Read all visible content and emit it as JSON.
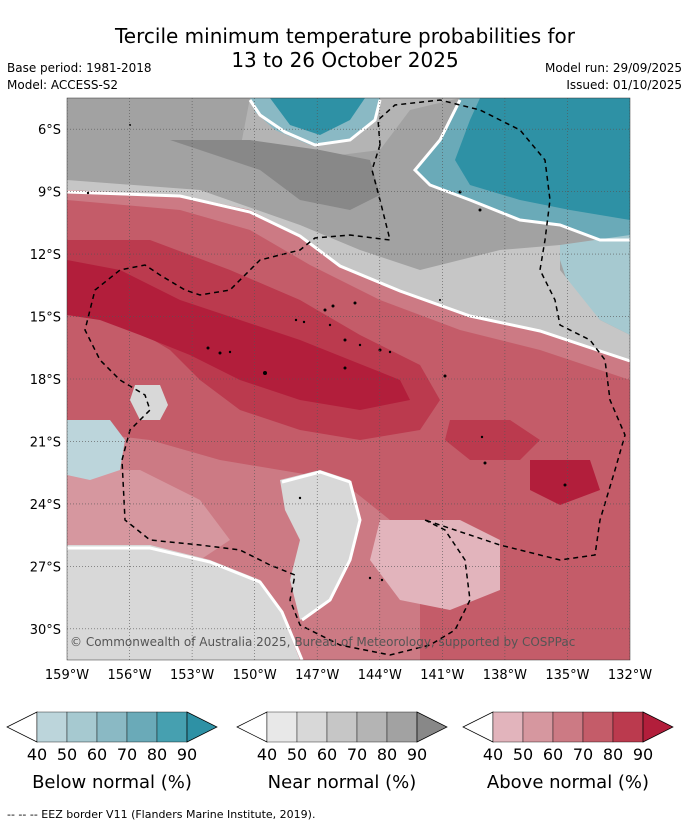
{
  "title_line1": "Tercile minimum temperature probabilities for",
  "title_line2": "13 to 26 October 2025",
  "base_period": "Base period: 1981-2018",
  "model": "Model: ACCESS-S2",
  "model_run": "Model run: 29/09/2025",
  "issued": "Issued: 01/10/2025",
  "copyright": "© Commonwealth of Australia 2025, Bureau of Meteorology, supported by COSPPac",
  "footer": "--  --  -- EEZ border V11 (Flanders Marine Institute, 2019).",
  "lat_labels": [
    "6°S",
    "9°S",
    "12°S",
    "15°S",
    "18°S",
    "21°S",
    "24°S",
    "27°S",
    "30°S"
  ],
  "lon_labels": [
    "159°W",
    "156°W",
    "153°W",
    "150°W",
    "147°W",
    "144°W",
    "141°W",
    "138°W",
    "135°W",
    "132°W"
  ],
  "colorbars": [
    {
      "title": "Below normal (%)",
      "ticks": [
        "40",
        "50",
        "60",
        "70",
        "80",
        "90"
      ],
      "colors": [
        "#ffffff",
        "#bcd5db",
        "#a6c9d0",
        "#8ab9c4",
        "#6aaab8",
        "#46a0b0",
        "#2e91a5"
      ]
    },
    {
      "title": "Near normal (%)",
      "ticks": [
        "40",
        "50",
        "60",
        "70",
        "80",
        "90"
      ],
      "colors": [
        "#ffffff",
        "#e8e8e8",
        "#d8d8d8",
        "#c6c6c6",
        "#b4b4b4",
        "#a2a2a2",
        "#888888"
      ]
    },
    {
      "title": "Above normal (%)",
      "ticks": [
        "40",
        "50",
        "60",
        "70",
        "80",
        "90"
      ],
      "colors": [
        "#ffffff",
        "#e2b4bc",
        "#d6979f",
        "#cc7a84",
        "#c45c69",
        "#bb3a4e",
        "#b21e3b"
      ]
    }
  ],
  "colors": {
    "red_light": "#e2b4bc",
    "red_mid": "#cc7a84",
    "red_dark": "#bb3a4e",
    "red_darkest": "#b21e3b",
    "gray_light": "#d8d8d8",
    "gray_mid": "#a2a2a2",
    "gray_dark": "#888888",
    "teal_light": "#a6c9d0",
    "teal_mid": "#6aaab8",
    "teal_dark": "#2e91a5"
  }
}
